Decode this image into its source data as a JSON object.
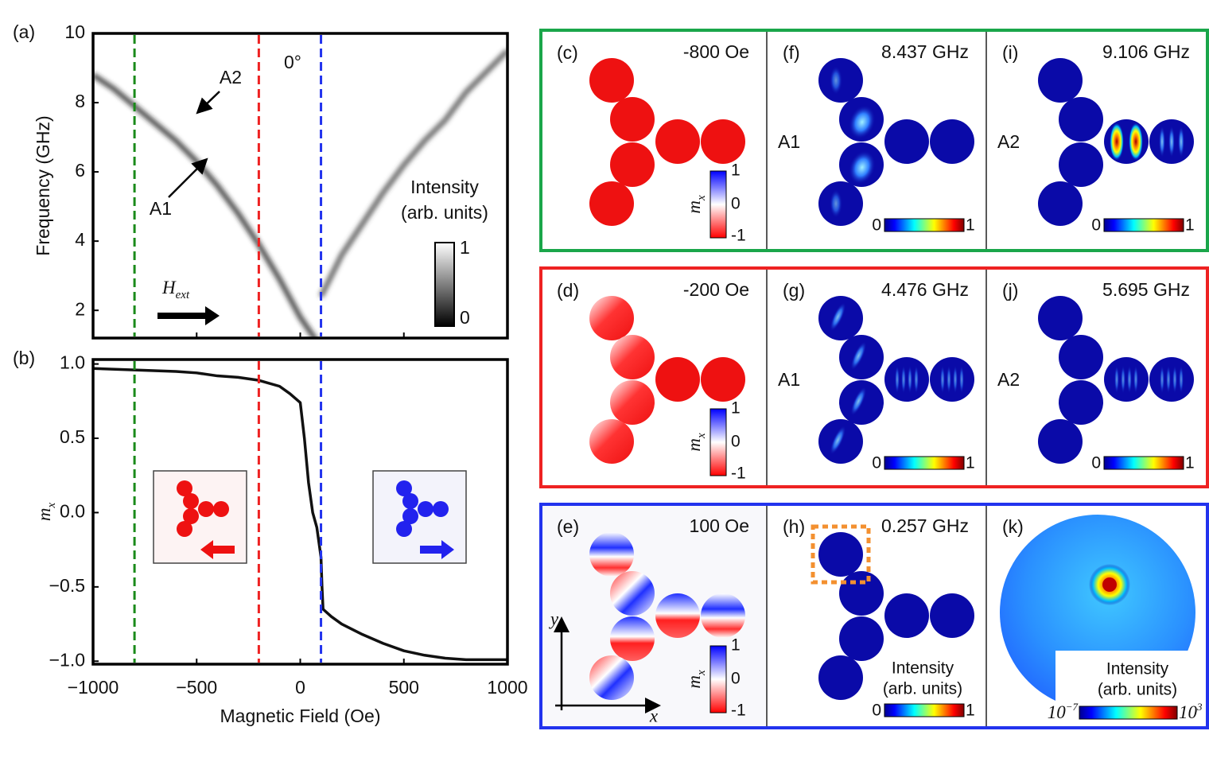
{
  "chart_data": [
    {
      "type": "heatmap",
      "panel_label": "(a)",
      "ylabel": "Frequency (GHz)",
      "xlim": [
        -1000,
        1000
      ],
      "xticks": [
        -1000,
        -500,
        0,
        500,
        1000
      ],
      "ylim": [
        1.2,
        10
      ],
      "yticks": [
        2,
        4,
        6,
        8,
        10
      ],
      "series": [
        {
          "color": "#222222",
          "x": [
            -1000,
            -900,
            -800,
            -700,
            -600,
            -500,
            -400,
            -300,
            -200,
            -100,
            0,
            80
          ],
          "values": [
            8.8,
            8.4,
            7.9,
            7.4,
            6.9,
            6.3,
            5.6,
            4.8,
            3.9,
            2.9,
            1.8,
            1.1
          ]
        },
        {
          "color": "#444444",
          "x": [
            100,
            200,
            300,
            400,
            500,
            600,
            700,
            800,
            900,
            1000
          ],
          "values": [
            2.4,
            3.6,
            4.5,
            5.4,
            6.2,
            6.9,
            7.5,
            8.3,
            8.9,
            9.5
          ]
        }
      ],
      "markers": [
        {
          "x": -800,
          "color": "#1a8a1a"
        },
        {
          "x": -200,
          "color": "#ee2222"
        },
        {
          "x": 100,
          "color": "#2233ee"
        }
      ],
      "annotations": {
        "a1": "A1",
        "a2": "A2",
        "angle": "0°",
        "field": {
          "main": "H",
          "sub": "ext"
        }
      },
      "colorbar": {
        "title": [
          "Intensity",
          "(arb. units)"
        ],
        "ticks": [
          "1",
          "0"
        ]
      }
    },
    {
      "type": "line",
      "panel_label": "(b)",
      "xlabel": "Magnetic Field (Oe)",
      "ylabel": {
        "main": "m",
        "sub": "x"
      },
      "xlim": [
        -1000,
        1000
      ],
      "xticks": [
        {
          "value": -1000,
          "label": "−1000"
        },
        {
          "value": -500,
          "label": "−500"
        },
        0,
        500,
        1000
      ],
      "ylim": [
        -1.02,
        1.03
      ],
      "yticks": [
        {
          "value": -1,
          "label": "−1.0"
        },
        {
          "value": -0.5,
          "label": "−0.5"
        },
        {
          "value": 0,
          "label": "0.0"
        },
        {
          "value": 0.5,
          "label": "0.5"
        },
        {
          "value": 1,
          "label": "1.0"
        }
      ],
      "series": [
        {
          "color": "#111111",
          "x": [
            -1000,
            -800,
            -600,
            -500,
            -400,
            -300,
            -200,
            -100,
            -50,
            0,
            20,
            40,
            60,
            80,
            100,
            105,
            110,
            150,
            200,
            300,
            400,
            500,
            600,
            700,
            800,
            1000
          ],
          "values": [
            0.97,
            0.96,
            0.95,
            0.94,
            0.92,
            0.91,
            0.89,
            0.85,
            0.8,
            0.74,
            0.5,
            0.2,
            0.0,
            -0.1,
            -0.3,
            -0.5,
            -0.65,
            -0.7,
            -0.75,
            -0.82,
            -0.88,
            -0.93,
            -0.96,
            -0.98,
            -0.99,
            -0.99
          ]
        }
      ],
      "markers": [
        {
          "x": -800,
          "color": "#1a8a1a"
        },
        {
          "x": -200,
          "color": "#ee2222"
        },
        {
          "x": 100,
          "color": "#2233ee"
        }
      ]
    }
  ],
  "panels": [
    {
      "color": "#1aa64a",
      "cells": [
        {
          "label": "(c)",
          "title": "-800 Oe",
          "colorbar": {
            "symbol": {
              "main": "m",
              "sub": "x"
            },
            "ticks": [
              "1",
              "0",
              "-1"
            ]
          }
        },
        {
          "label": "(f)",
          "title": "8.437 GHz",
          "mode": "A1",
          "colorbar": {
            "ticks": [
              "0",
              "1"
            ]
          }
        },
        {
          "label": "(i)",
          "title": "9.106 GHz",
          "mode": "A2",
          "colorbar": {
            "ticks": [
              "0",
              "1"
            ]
          }
        }
      ]
    },
    {
      "color": "#ee2222",
      "cells": [
        {
          "label": "(d)",
          "title": "-200 Oe",
          "colorbar": {
            "symbol": {
              "main": "m",
              "sub": "x"
            },
            "ticks": [
              "1",
              "0",
              "-1"
            ]
          }
        },
        {
          "label": "(g)",
          "title": "4.476 GHz",
          "mode": "A1",
          "colorbar": {
            "ticks": [
              "0",
              "1"
            ]
          }
        },
        {
          "label": "(j)",
          "title": "5.695 GHz",
          "mode": "A2",
          "colorbar": {
            "ticks": [
              "0",
              "1"
            ]
          }
        }
      ]
    },
    {
      "color": "#2233ee",
      "cells": [
        {
          "label": "(e)",
          "title": "100 Oe",
          "axes": {
            "x": "x",
            "y": "y"
          },
          "colorbar": {
            "symbol": {
              "main": "m",
              "sub": "x"
            },
            "ticks": [
              "1",
              "0",
              "-1"
            ]
          }
        },
        {
          "label": "(h)",
          "title": "0.257 GHz",
          "colorbar": {
            "title": [
              "Intensity",
              "(arb. units)"
            ],
            "ticks": [
              "0",
              "1"
            ]
          }
        },
        {
          "label": "(k)",
          "colorbar": {
            "title": [
              "Intensity",
              "(arb. units)"
            ],
            "ticks": [
              {
                "base": "10",
                "exp": "−7"
              },
              {
                "base": "10",
                "exp": "3"
              }
            ]
          }
        }
      ]
    }
  ]
}
